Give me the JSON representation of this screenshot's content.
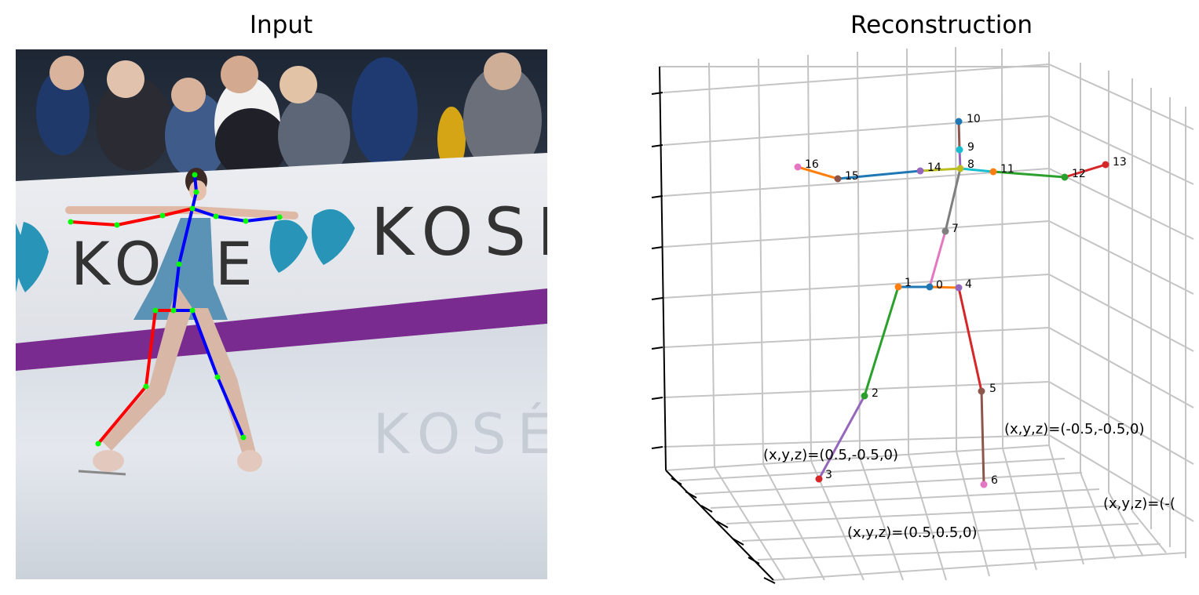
{
  "titles": {
    "input": "Input",
    "reconstruction": "Reconstruction"
  },
  "photo": {
    "banner_text": "KOSÉ",
    "banner_text_partial": "KOSE",
    "ice_reflection_text": "KOSÉ"
  },
  "joint_labels": [
    "0",
    "1",
    "2",
    "3",
    "4",
    "5",
    "6",
    "7",
    "8",
    "9",
    "10",
    "11",
    "12",
    "13",
    "14",
    "15",
    "16"
  ],
  "corner_labels": {
    "front_left": "(x,y,z)=(0.5,-0.5,0)",
    "back_right": "(x,y,z)=(-0.5,-0.5,0)",
    "front_center": "(x,y,z)=(0.5,0.5,0)",
    "right_cut": "(x,y,z)=(-("
  },
  "colors": {
    "left_limbs_2d": "#ff0000",
    "right_limbs_2d": "#0000ff",
    "keypoints_2d": "#00ff00"
  }
}
